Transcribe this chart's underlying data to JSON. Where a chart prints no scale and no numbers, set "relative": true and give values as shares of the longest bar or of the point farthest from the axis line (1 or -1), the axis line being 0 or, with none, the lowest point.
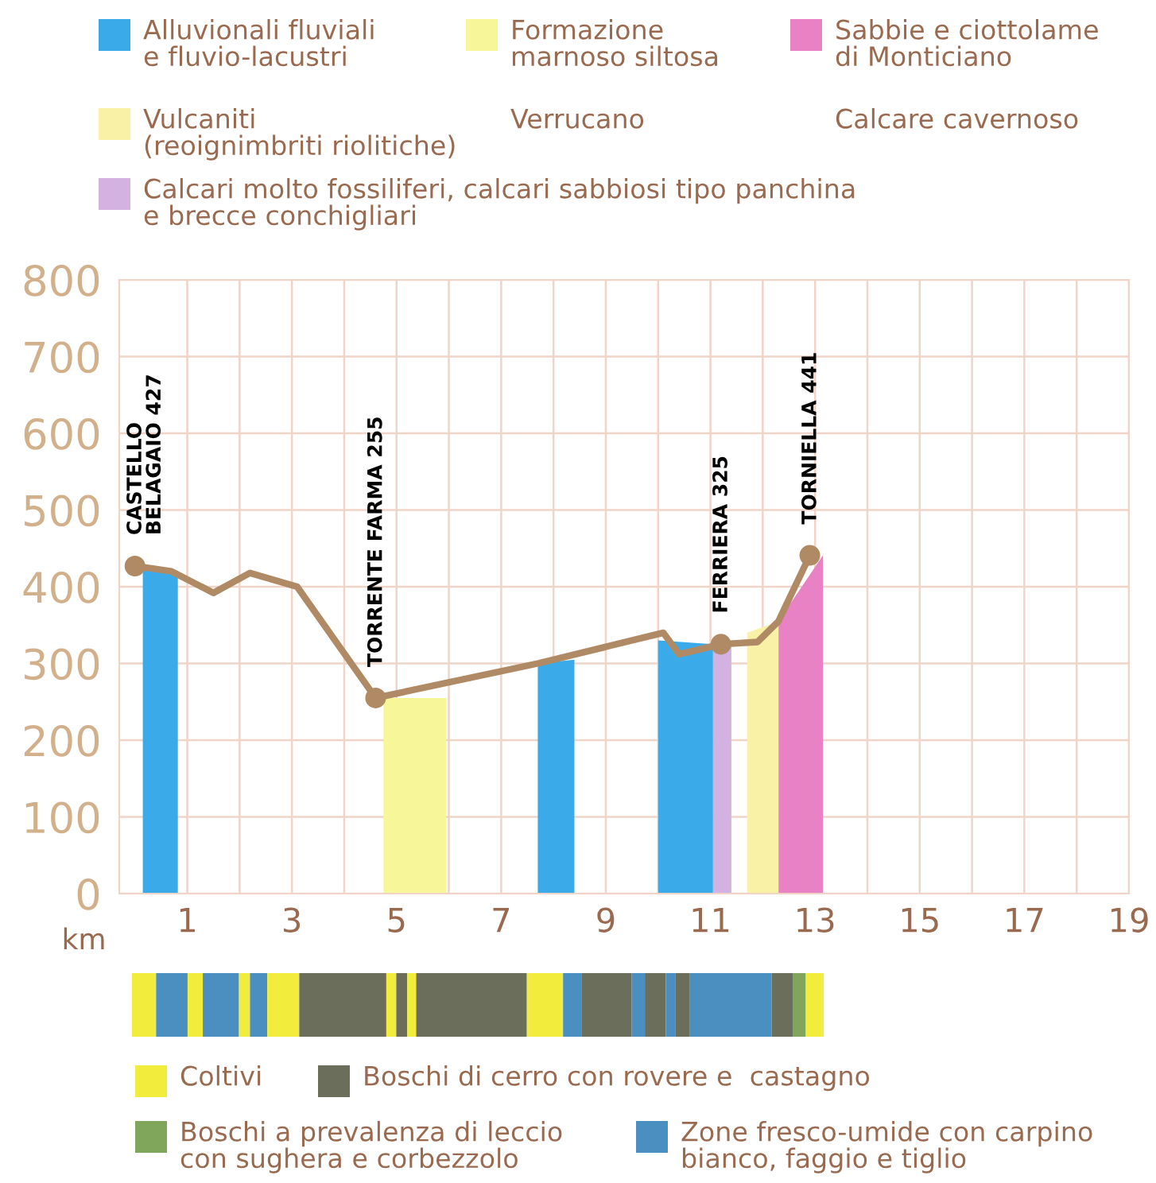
{
  "chart_data": [
    {
      "type": "line",
      "xlabel": "km",
      "legend": "top",
      "grid": true,
      "xlim": [
        -0.3,
        19
      ],
      "ylim": [
        0,
        800
      ],
      "xticks": [
        1,
        {
          "value": 2,
          "label": null
        },
        3,
        {
          "value": 4,
          "label": null
        },
        5,
        {
          "value": 6,
          "label": null
        },
        7,
        {
          "value": 8,
          "label": null
        },
        9,
        {
          "value": 10,
          "label": null
        },
        11,
        {
          "value": 12,
          "label": null
        },
        13,
        {
          "value": 14,
          "label": null
        },
        15,
        {
          "value": 16,
          "label": null
        },
        17,
        {
          "value": 18,
          "label": null
        },
        19
      ],
      "yticks": [
        0,
        100,
        200,
        300,
        400,
        500,
        600,
        700,
        800
      ],
      "series": [
        {
          "type": "area",
          "name": "Alluvionali fluviali\ne fluvio-lacustri",
          "color": "#3aabe8",
          "x": [
            0.15,
            0.82,
            4.0,
            7.7,
            8.4,
            9.0,
            10.0,
            11.05
          ],
          "values": [
            425,
            420,
            null,
            300,
            305,
            null,
            330,
            325
          ]
        },
        {
          "type": "area",
          "name": "Formazione\nmarnoso siltosa",
          "color": "#f7f79a",
          "x": [
            4.75,
            5.95
          ],
          "values": [
            255,
            255
          ]
        },
        {
          "type": "area",
          "name": "Sabbie e ciottolame\ndi Monticiano",
          "color": "#e882c4",
          "x": [
            12.3,
            13.15
          ],
          "values": [
            355,
            441
          ]
        },
        {
          "type": "area",
          "name": "Vulcaniti\n(reoignimbriti riolitiche)",
          "color": "#f9f1a6",
          "x": [
            11.7,
            12.3
          ],
          "values": [
            340,
            355
          ]
        },
        {
          "type": "area",
          "name": "Calcari molto fossiliferi, calcari sabbiosi tipo panchina\ne brecce conchigliari",
          "color": "#d3b1e0",
          "x": [
            11.05,
            11.4
          ],
          "values": [
            325,
            325
          ]
        },
        {
          "type": "line",
          "color": "#b08a64",
          "marker": "none",
          "x": [
            0,
            0.7,
            1.5,
            2.2,
            3.1,
            4.6,
            7.7,
            10.1,
            10.4,
            11.2,
            11.9,
            12.3,
            12.9
          ],
          "values": [
            427,
            420,
            392,
            418,
            400,
            255,
            300,
            340,
            312,
            325,
            328,
            355,
            441
          ]
        },
        {
          "type": "scatter",
          "color": "#b08a64",
          "marker": "circle",
          "x": [
            0,
            4.6,
            11.2,
            12.9
          ],
          "values": [
            427,
            255,
            325,
            441
          ]
        }
      ],
      "annotations": [
        {
          "text": "CASTELLO\nBELAGAIO 427",
          "x": 0,
          "y": 427
        },
        {
          "text": "TORRENTE FARMA 255",
          "x": 4.6,
          "y": 255
        },
        {
          "text": "FERRIERA 325",
          "x": 11.2,
          "y": 325
        },
        {
          "text": "TORNIELLA 441",
          "x": 12.9,
          "y": 441
        },
        "Verrucano",
        "Calcare cavernoso"
      ]
    },
    {
      "type": "bar",
      "orientation": "horizontal",
      "stacked": true,
      "relative": true,
      "legend": "bottom",
      "categories": [
        null
      ],
      "series": [
        {
          "name": "Coltivi",
          "color": "#f2ec3c",
          "values": [
            0.0349
          ]
        },
        {
          "name": "Zone fresco-umide con carpino\nbianco, faggio e tiglio",
          "color": "#4a8fc0",
          "values": [
            0.0455
          ]
        },
        {
          "color": "#f2ec3c",
          "values": [
            0.022
          ]
        },
        {
          "color": "#4a8fc0",
          "values": [
            0.0523
          ]
        },
        {
          "color": "#f2ec3c",
          "values": [
            0.0159
          ]
        },
        {
          "color": "#4a8fc0",
          "values": [
            0.025
          ]
        },
        {
          "color": "#f2ec3c",
          "values": [
            0.0462
          ]
        },
        {
          "name": "Boschi di cerro con rovere e  castagno",
          "color": "#6b6e5a",
          "values": [
            0.1259
          ]
        },
        {
          "color": "#f2ec3c",
          "values": [
            0.0144
          ]
        },
        {
          "color": "#6b6e5a",
          "values": [
            0.0159
          ]
        },
        {
          "color": "#f2ec3c",
          "values": [
            0.0129
          ]
        },
        {
          "color": "#6b6e5a",
          "values": [
            0.16
          ]
        },
        {
          "color": "#f2ec3c",
          "values": [
            0.0523
          ]
        },
        {
          "color": "#4a8fc0",
          "values": [
            0.0265
          ]
        },
        {
          "color": "#6b6e5a",
          "values": [
            0.0728
          ]
        },
        {
          "color": "#4a8fc0",
          "values": [
            0.019
          ]
        },
        {
          "color": "#6b6e5a",
          "values": [
            0.0303
          ]
        },
        {
          "color": "#4a8fc0",
          "values": [
            0.0136
          ]
        },
        {
          "color": "#6b6e5a",
          "values": [
            0.0212
          ]
        },
        {
          "color": "#4a8fc0",
          "values": [
            0.1183
          ]
        },
        {
          "color": "#6b6e5a",
          "values": [
            0.0303
          ]
        },
        {
          "name": "Boschi a prevalenza di leccio\ncon sughera e corbezzolo",
          "color": "#7fa65a",
          "values": [
            0.019
          ]
        },
        {
          "color": "#f2ec3c",
          "values": [
            0.0258
          ]
        }
      ]
    }
  ]
}
